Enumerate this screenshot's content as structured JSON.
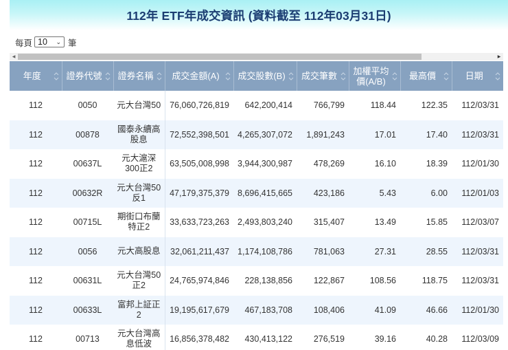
{
  "page": {
    "title": "112年 ETF年成交資訊 (資料截至 112年03月31日)"
  },
  "page_size": {
    "prefix": "每頁",
    "selected": "10",
    "suffix": "筆"
  },
  "colors": {
    "title": "#1b3d72",
    "header_bg": "#87a2c0",
    "row_alt_bg": "#eef5fd"
  },
  "table": {
    "columns": [
      {
        "label": "年度",
        "icon": "sort-icon"
      },
      {
        "label": "證券代號",
        "icon": "sort-icon"
      },
      {
        "label": "證券名稱",
        "icon": "sort-icon"
      },
      {
        "label": "成交金額(A)",
        "icon": "sort-icon"
      },
      {
        "label": "成交股數(B)",
        "icon": "sort-icon"
      },
      {
        "label": "成交筆數",
        "icon": "sort-icon"
      },
      {
        "label": "加權平均價(A/B)",
        "icon": "sort-icon"
      },
      {
        "label": "最高價",
        "icon": "sort-icon"
      },
      {
        "label": "日期",
        "icon": "sort-icon"
      }
    ],
    "rows": [
      {
        "year": "112",
        "code": "0050",
        "name": "元大台灣50",
        "amount": "76,060,726,819",
        "shares": "642,200,414",
        "trades": "766,799",
        "avg_price": "118.44",
        "high": "122.35",
        "date": "112/03/31"
      },
      {
        "year": "112",
        "code": "00878",
        "name": "國泰永續高股息",
        "amount": "72,552,398,501",
        "shares": "4,265,307,072",
        "trades": "1,891,243",
        "avg_price": "17.01",
        "high": "17.40",
        "date": "112/03/31"
      },
      {
        "year": "112",
        "code": "00637L",
        "name": "元大滬深300正2",
        "amount": "63,505,008,998",
        "shares": "3,944,300,987",
        "trades": "478,269",
        "avg_price": "16.10",
        "high": "18.39",
        "date": "112/01/30"
      },
      {
        "year": "112",
        "code": "00632R",
        "name": "元大台灣50反1",
        "amount": "47,179,375,379",
        "shares": "8,696,415,665",
        "trades": "423,186",
        "avg_price": "5.43",
        "high": "6.00",
        "date": "112/01/03"
      },
      {
        "year": "112",
        "code": "00715L",
        "name": "期街口布蘭特正2",
        "amount": "33,633,723,263",
        "shares": "2,493,803,240",
        "trades": "315,407",
        "avg_price": "13.49",
        "high": "15.85",
        "date": "112/03/07"
      },
      {
        "year": "112",
        "code": "0056",
        "name": "元大高股息",
        "amount": "32,061,211,437",
        "shares": "1,174,108,786",
        "trades": "781,063",
        "avg_price": "27.31",
        "high": "28.55",
        "date": "112/03/31"
      },
      {
        "year": "112",
        "code": "00631L",
        "name": "元大台灣50正2",
        "amount": "24,765,974,846",
        "shares": "228,138,856",
        "trades": "122,867",
        "avg_price": "108.56",
        "high": "118.75",
        "date": "112/03/31"
      },
      {
        "year": "112",
        "code": "00633L",
        "name": "富邦上証正2",
        "amount": "19,195,617,679",
        "shares": "467,183,708",
        "trades": "108,406",
        "avg_price": "41.09",
        "high": "46.66",
        "date": "112/01/30"
      },
      {
        "year": "112",
        "code": "00713",
        "name": "元大台灣高息低波",
        "amount": "16,856,378,482",
        "shares": "430,413,122",
        "trades": "276,519",
        "avg_price": "39.16",
        "high": "40.28",
        "date": "112/03/09"
      }
    ]
  }
}
